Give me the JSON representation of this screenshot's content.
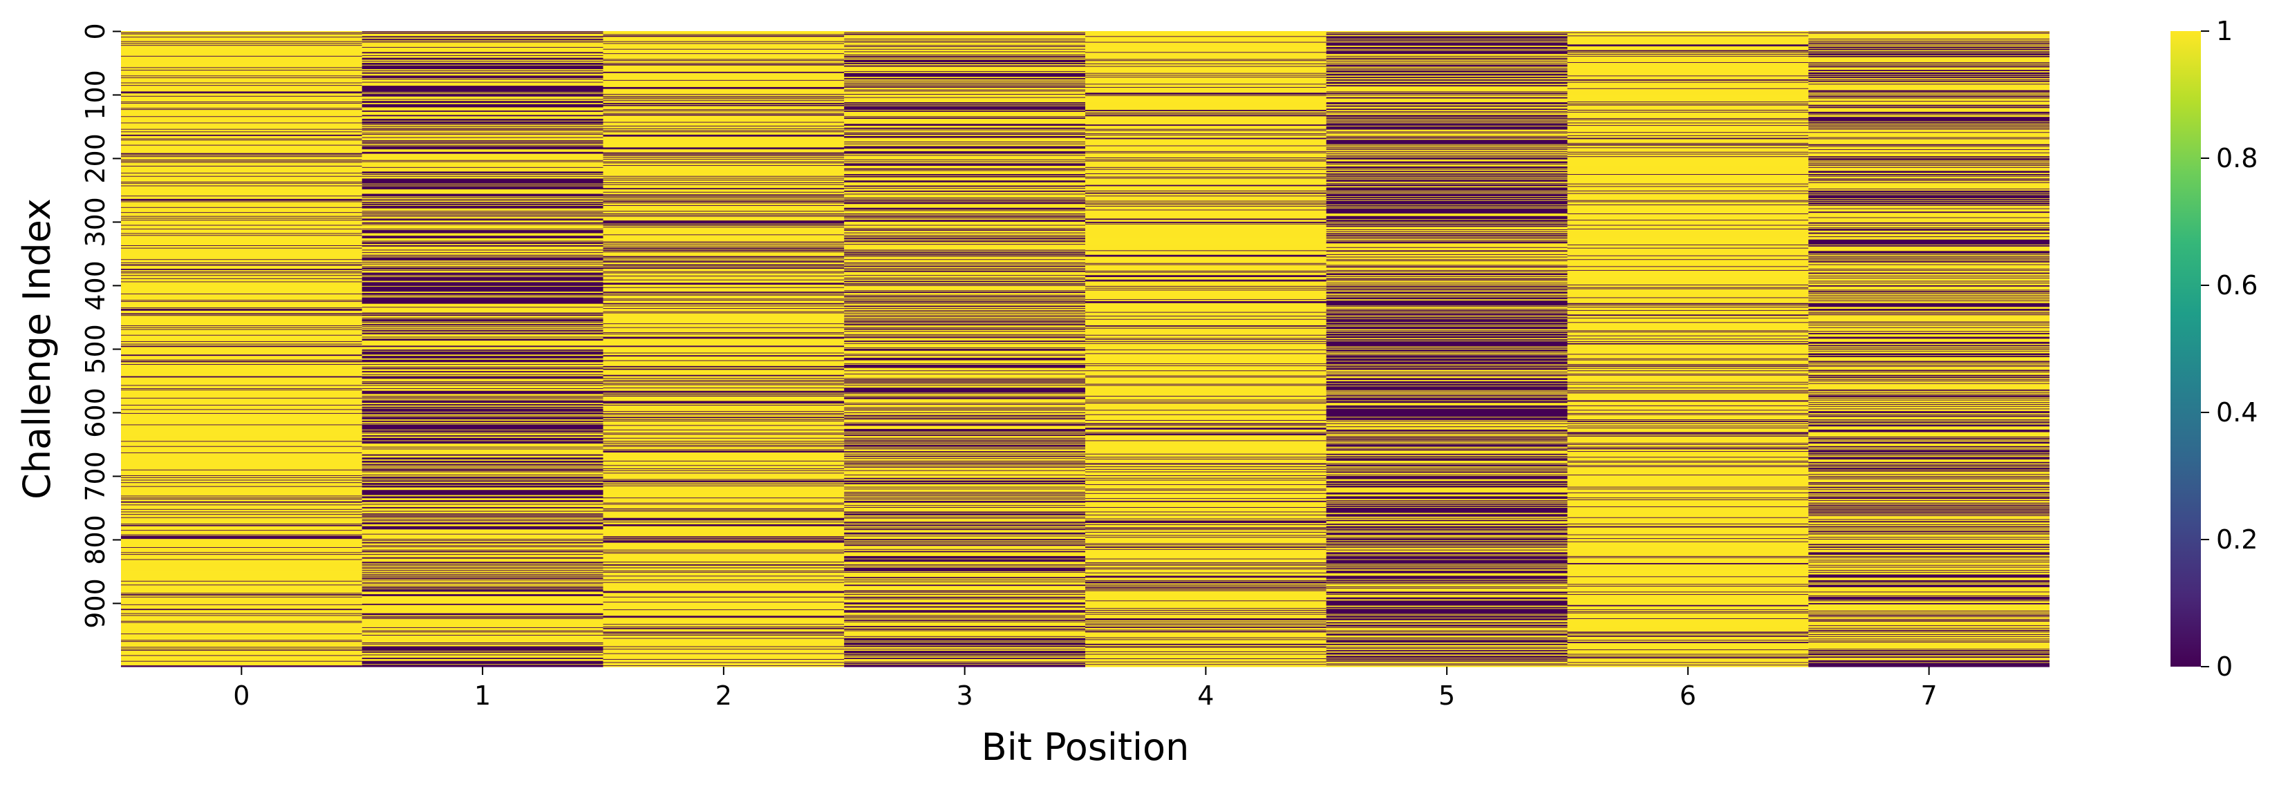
{
  "chart_data": {
    "type": "heatmap",
    "title": "",
    "xlabel": "Bit Position",
    "ylabel": "Challenge Index",
    "x_categories": [
      "0",
      "1",
      "2",
      "3",
      "4",
      "5",
      "6",
      "7"
    ],
    "y_ticks": [
      "0",
      "100",
      "200",
      "300",
      "400",
      "500",
      "600",
      "700",
      "800",
      "900"
    ],
    "n_rows": 1000,
    "value_range": [
      0,
      1
    ],
    "colormap": "viridis",
    "colorbar_ticks": [
      "0",
      "0.2",
      "0.4",
      "0.6",
      "0.8",
      "1"
    ],
    "column_mean_values": [
      0.85,
      0.55,
      0.75,
      0.6,
      0.8,
      0.45,
      0.85,
      0.6
    ],
    "values_note": "binary 0/1 per challenge row; column means estimated from dominant shading",
    "grid": false,
    "legend": "colorbar-right",
    "colors": {
      "viridis": [
        "#440154",
        "#482878",
        "#3e4989",
        "#31688e",
        "#26828e",
        "#1f9e89",
        "#35b779",
        "#6ece58",
        "#b5de2b",
        "#fde725"
      ]
    }
  }
}
